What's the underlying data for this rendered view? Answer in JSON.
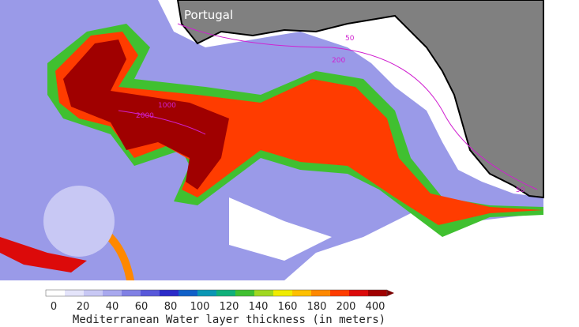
{
  "map": {
    "label": "Portugal",
    "contour_labels": [
      "50",
      "200",
      "1000",
      "2000",
      "50"
    ]
  },
  "colorbar": {
    "ticks": [
      "0",
      "20",
      "40",
      "60",
      "80",
      "100",
      "120",
      "140",
      "160",
      "180",
      "200",
      "400"
    ],
    "colors": [
      "#ffffff",
      "#e4e4fa",
      "#c8c8f4",
      "#a8a8ee",
      "#8080e4",
      "#5858da",
      "#2a2ac8",
      "#1060c8",
      "#0a96b4",
      "#10b07a",
      "#40c030",
      "#a0d820",
      "#f0ec00",
      "#ffc000",
      "#ff8800",
      "#ff3c00",
      "#dc0a0a",
      "#a00000"
    ],
    "arrow_color": "#7a0000",
    "title": "Mediterranean Water layer thickness (in meters)"
  }
}
